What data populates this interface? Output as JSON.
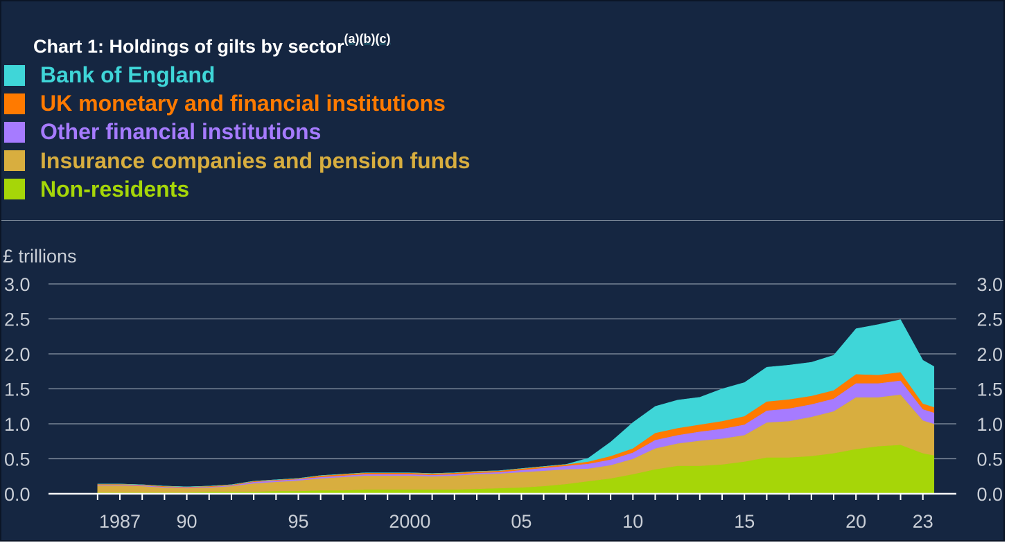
{
  "title": {
    "text": "Chart 1: Holdings of gilts by sector",
    "notes": [
      "(a)",
      "(b)",
      "(c)"
    ]
  },
  "chart_data": {
    "type": "area",
    "stacked": true,
    "units_label": "£ trillions",
    "ylim": [
      0,
      3.0
    ],
    "y_ticks": [
      "0.0",
      "0.5",
      "1.0",
      "1.5",
      "2.0",
      "2.5",
      "3.0"
    ],
    "x_ticks": [
      {
        "year": 1987,
        "label": "1987"
      },
      {
        "year": 1990,
        "label": "90"
      },
      {
        "year": 1995,
        "label": "95"
      },
      {
        "year": 2000,
        "label": "2000"
      },
      {
        "year": 2005,
        "label": "05"
      },
      {
        "year": 2010,
        "label": "10"
      },
      {
        "year": 2015,
        "label": "15"
      },
      {
        "year": 2020,
        "label": "20"
      },
      {
        "year": 2023,
        "label": "23"
      }
    ],
    "xlim": [
      1983.8,
      2024.5
    ],
    "grid": true,
    "legend_position": "top-left",
    "x": [
      1986,
      1987,
      1988,
      1989,
      1990,
      1991,
      1992,
      1993,
      1994,
      1995,
      1996,
      1997,
      1998,
      1999,
      2000,
      2001,
      2002,
      2003,
      2004,
      2005,
      2006,
      2007,
      2008,
      2009,
      2010,
      2011,
      2012,
      2013,
      2014,
      2015,
      2016,
      2017,
      2018,
      2019,
      2020,
      2021,
      2022,
      2023,
      2023.5
    ],
    "series": [
      {
        "name": "Non-residents",
        "color": "#a6d608",
        "values": [
          0.02,
          0.02,
          0.02,
          0.02,
          0.02,
          0.03,
          0.03,
          0.03,
          0.04,
          0.04,
          0.05,
          0.05,
          0.06,
          0.06,
          0.06,
          0.06,
          0.06,
          0.07,
          0.08,
          0.09,
          0.11,
          0.14,
          0.18,
          0.22,
          0.28,
          0.35,
          0.4,
          0.4,
          0.42,
          0.46,
          0.52,
          0.52,
          0.54,
          0.58,
          0.64,
          0.68,
          0.7,
          0.58,
          0.55
        ]
      },
      {
        "name": "Insurance companies and pension funds",
        "color": "#d8ae3f",
        "values": [
          0.1,
          0.1,
          0.09,
          0.07,
          0.06,
          0.06,
          0.08,
          0.12,
          0.13,
          0.15,
          0.17,
          0.19,
          0.2,
          0.2,
          0.2,
          0.19,
          0.2,
          0.21,
          0.21,
          0.22,
          0.22,
          0.21,
          0.18,
          0.19,
          0.22,
          0.3,
          0.32,
          0.36,
          0.37,
          0.38,
          0.5,
          0.52,
          0.56,
          0.6,
          0.74,
          0.7,
          0.72,
          0.47,
          0.45
        ]
      },
      {
        "name": "Other financial institutions",
        "color": "#a67bff",
        "values": [
          0.01,
          0.01,
          0.01,
          0.01,
          0.01,
          0.01,
          0.01,
          0.02,
          0.02,
          0.02,
          0.02,
          0.02,
          0.02,
          0.02,
          0.02,
          0.02,
          0.02,
          0.02,
          0.02,
          0.03,
          0.04,
          0.05,
          0.07,
          0.08,
          0.09,
          0.12,
          0.12,
          0.13,
          0.14,
          0.15,
          0.17,
          0.18,
          0.18,
          0.18,
          0.2,
          0.2,
          0.2,
          0.16,
          0.16
        ]
      },
      {
        "name": "UK monetary and financial institutions",
        "color": "#ff7a00",
        "values": [
          0.01,
          0.01,
          0.01,
          0.01,
          0.01,
          0.01,
          0.01,
          0.01,
          0.01,
          0.01,
          0.02,
          0.02,
          0.02,
          0.02,
          0.02,
          0.02,
          0.02,
          0.02,
          0.02,
          0.02,
          0.02,
          0.02,
          0.03,
          0.05,
          0.06,
          0.1,
          0.1,
          0.1,
          0.11,
          0.12,
          0.13,
          0.13,
          0.12,
          0.12,
          0.13,
          0.12,
          0.12,
          0.08,
          0.08
        ]
      },
      {
        "name": "Bank of England",
        "color": "#3fd6d8",
        "values": [
          0.0,
          0.0,
          0.0,
          0.0,
          0.0,
          0.0,
          0.0,
          0.0,
          0.0,
          0.0,
          0.0,
          0.0,
          0.0,
          0.0,
          0.0,
          0.0,
          0.0,
          0.0,
          0.0,
          0.0,
          0.0,
          0.0,
          0.05,
          0.2,
          0.37,
          0.38,
          0.4,
          0.39,
          0.46,
          0.48,
          0.49,
          0.49,
          0.48,
          0.5,
          0.65,
          0.72,
          0.75,
          0.62,
          0.58
        ]
      }
    ]
  },
  "legend": [
    {
      "label": "Bank of England",
      "color": "#3fd6d8"
    },
    {
      "label": "UK monetary and financial institutions",
      "color": "#ff7a00"
    },
    {
      "label": "Other financial institutions",
      "color": "#a67bff"
    },
    {
      "label": "Insurance companies and pension funds",
      "color": "#d8ae3f"
    },
    {
      "label": "Non-residents",
      "color": "#a6d608"
    }
  ],
  "colors": {
    "background": "#152641",
    "grid": "#8a96a6",
    "axis_text": "#c9ced6"
  }
}
